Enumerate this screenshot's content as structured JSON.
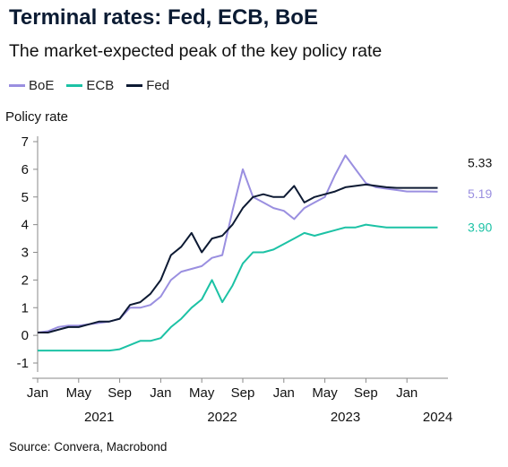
{
  "title": "Terminal rates: Fed, ECB, BoE",
  "subtitle": "The market-expected peak of the key policy rate",
  "source": "Source: Convera, Macrobond",
  "colors": {
    "BoE": "#9a8fe0",
    "ECB": "#1cc2a5",
    "Fed": "#0d1a33"
  },
  "chart_data": {
    "type": "line",
    "title": "Terminal rates: Fed, ECB, BoE",
    "subtitle": "The market-expected peak of the key policy rate",
    "ylabel": "Policy rate",
    "xlabel": "",
    "ylim": [
      -1,
      7
    ],
    "yticks": [
      -1,
      0,
      1,
      2,
      3,
      4,
      5,
      6,
      7
    ],
    "x_range": [
      "2021-01",
      "2024-05"
    ],
    "month_ticks": [
      "Jan",
      "May",
      "Sep",
      "Jan",
      "May",
      "Sep",
      "Jan",
      "May",
      "Sep",
      "Jan"
    ],
    "year_labels": [
      "2021",
      "2022",
      "2023",
      "2024"
    ],
    "grid": false,
    "legend_position": "top-left",
    "end_labels": {
      "Fed": "5.33",
      "BoE": "5.19",
      "ECB": "3.90"
    },
    "series": [
      {
        "name": "BoE",
        "color": "#9a8fe0",
        "points": [
          [
            "2021-01",
            0.1
          ],
          [
            "2021-02",
            0.15
          ],
          [
            "2021-03",
            0.3
          ],
          [
            "2021-04",
            0.35
          ],
          [
            "2021-05",
            0.35
          ],
          [
            "2021-06",
            0.4
          ],
          [
            "2021-07",
            0.45
          ],
          [
            "2021-08",
            0.5
          ],
          [
            "2021-09",
            0.6
          ],
          [
            "2021-10",
            1.0
          ],
          [
            "2021-11",
            1.0
          ],
          [
            "2021-12",
            1.1
          ],
          [
            "2022-01",
            1.4
          ],
          [
            "2022-02",
            2.0
          ],
          [
            "2022-03",
            2.3
          ],
          [
            "2022-04",
            2.4
          ],
          [
            "2022-05",
            2.5
          ],
          [
            "2022-06",
            2.8
          ],
          [
            "2022-07",
            2.9
          ],
          [
            "2022-08",
            4.5
          ],
          [
            "2022-09",
            6.0
          ],
          [
            "2022-10",
            5.0
          ],
          [
            "2022-11",
            4.8
          ],
          [
            "2022-12",
            4.6
          ],
          [
            "2023-01",
            4.5
          ],
          [
            "2023-02",
            4.2
          ],
          [
            "2023-03",
            4.6
          ],
          [
            "2023-04",
            4.8
          ],
          [
            "2023-05",
            5.0
          ],
          [
            "2023-06",
            5.8
          ],
          [
            "2023-07",
            6.5
          ],
          [
            "2023-08",
            6.0
          ],
          [
            "2023-09",
            5.5
          ],
          [
            "2023-10",
            5.35
          ],
          [
            "2023-11",
            5.3
          ],
          [
            "2023-12",
            5.25
          ],
          [
            "2024-01",
            5.2
          ],
          [
            "2024-02",
            5.2
          ],
          [
            "2024-03",
            5.2
          ],
          [
            "2024-04",
            5.19
          ]
        ]
      },
      {
        "name": "ECB",
        "color": "#1cc2a5",
        "points": [
          [
            "2021-01",
            -0.55
          ],
          [
            "2021-02",
            -0.55
          ],
          [
            "2021-03",
            -0.55
          ],
          [
            "2021-04",
            -0.55
          ],
          [
            "2021-05",
            -0.55
          ],
          [
            "2021-06",
            -0.55
          ],
          [
            "2021-07",
            -0.55
          ],
          [
            "2021-08",
            -0.55
          ],
          [
            "2021-09",
            -0.5
          ],
          [
            "2021-10",
            -0.35
          ],
          [
            "2021-11",
            -0.2
          ],
          [
            "2021-12",
            -0.2
          ],
          [
            "2022-01",
            -0.1
          ],
          [
            "2022-02",
            0.3
          ],
          [
            "2022-03",
            0.6
          ],
          [
            "2022-04",
            1.0
          ],
          [
            "2022-05",
            1.3
          ],
          [
            "2022-06",
            2.0
          ],
          [
            "2022-07",
            1.2
          ],
          [
            "2022-08",
            1.8
          ],
          [
            "2022-09",
            2.6
          ],
          [
            "2022-10",
            3.0
          ],
          [
            "2022-11",
            3.0
          ],
          [
            "2022-12",
            3.1
          ],
          [
            "2023-01",
            3.3
          ],
          [
            "2023-02",
            3.5
          ],
          [
            "2023-03",
            3.7
          ],
          [
            "2023-04",
            3.6
          ],
          [
            "2023-05",
            3.7
          ],
          [
            "2023-06",
            3.8
          ],
          [
            "2023-07",
            3.9
          ],
          [
            "2023-08",
            3.9
          ],
          [
            "2023-09",
            4.0
          ],
          [
            "2023-10",
            3.95
          ],
          [
            "2023-11",
            3.9
          ],
          [
            "2023-12",
            3.9
          ],
          [
            "2024-01",
            3.9
          ],
          [
            "2024-02",
            3.9
          ],
          [
            "2024-03",
            3.9
          ],
          [
            "2024-04",
            3.9
          ]
        ]
      },
      {
        "name": "Fed",
        "color": "#0d1a33",
        "points": [
          [
            "2021-01",
            0.1
          ],
          [
            "2021-02",
            0.1
          ],
          [
            "2021-03",
            0.2
          ],
          [
            "2021-04",
            0.3
          ],
          [
            "2021-05",
            0.3
          ],
          [
            "2021-06",
            0.4
          ],
          [
            "2021-07",
            0.5
          ],
          [
            "2021-08",
            0.5
          ],
          [
            "2021-09",
            0.6
          ],
          [
            "2021-10",
            1.1
          ],
          [
            "2021-11",
            1.2
          ],
          [
            "2021-12",
            1.5
          ],
          [
            "2022-01",
            2.0
          ],
          [
            "2022-02",
            2.9
          ],
          [
            "2022-03",
            3.2
          ],
          [
            "2022-04",
            3.7
          ],
          [
            "2022-05",
            3.0
          ],
          [
            "2022-06",
            3.5
          ],
          [
            "2022-07",
            3.6
          ],
          [
            "2022-08",
            4.0
          ],
          [
            "2022-09",
            4.6
          ],
          [
            "2022-10",
            5.0
          ],
          [
            "2022-11",
            5.1
          ],
          [
            "2022-12",
            5.0
          ],
          [
            "2023-01",
            5.0
          ],
          [
            "2023-02",
            5.4
          ],
          [
            "2023-03",
            4.8
          ],
          [
            "2023-04",
            5.0
          ],
          [
            "2023-05",
            5.1
          ],
          [
            "2023-06",
            5.2
          ],
          [
            "2023-07",
            5.35
          ],
          [
            "2023-08",
            5.4
          ],
          [
            "2023-09",
            5.45
          ],
          [
            "2023-10",
            5.4
          ],
          [
            "2023-11",
            5.35
          ],
          [
            "2023-12",
            5.33
          ],
          [
            "2024-01",
            5.33
          ],
          [
            "2024-02",
            5.33
          ],
          [
            "2024-03",
            5.33
          ],
          [
            "2024-04",
            5.33
          ]
        ]
      }
    ]
  }
}
